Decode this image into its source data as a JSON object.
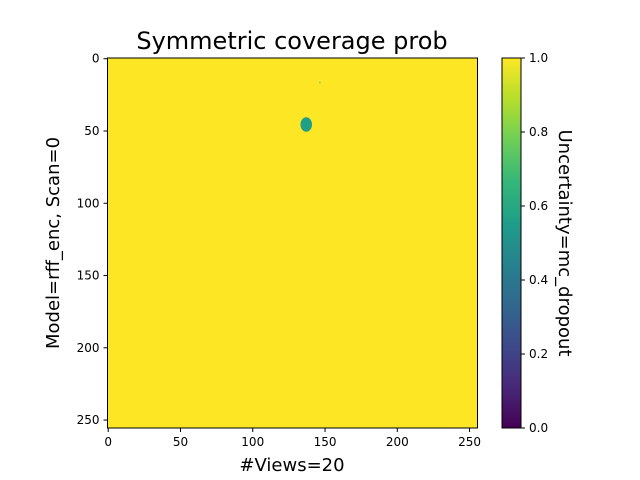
{
  "chart_data": {
    "type": "heatmap",
    "title": "Symmetric coverage prob",
    "xlabel": "#Views=20",
    "ylabel": "Model=rff_enc, Scan=0",
    "colorbar_label": "Uncertainty=mc_dropout",
    "xlim": [
      -0.5,
      255.5
    ],
    "ylim": [
      255.5,
      -0.5
    ],
    "x_ticks": [
      0,
      50,
      100,
      150,
      200,
      250
    ],
    "y_ticks": [
      0,
      50,
      100,
      150,
      200,
      250
    ],
    "colorbar_ticks": [
      0.0,
      0.2,
      0.4,
      0.6,
      0.8,
      1.0
    ],
    "colorbar_tick_labels": [
      "0.0",
      "0.2",
      "0.4",
      "0.6",
      "0.8",
      "1.0"
    ],
    "colorbar_range": [
      0.0,
      1.0
    ],
    "colormap": "viridis",
    "grid": false,
    "background_value": 1.0,
    "regions": [
      {
        "shape": "ellipse",
        "center_x": 137,
        "center_y": 45.5,
        "radius_x": 4,
        "radius_y": 5,
        "value": 0.56
      },
      {
        "shape": "point",
        "center_x": 146.5,
        "center_y": 16.5,
        "value": 0.8
      }
    ]
  },
  "colors": {
    "viridis": [
      "#440154",
      "#482878",
      "#3e4989",
      "#31688e",
      "#26828e",
      "#1f9e89",
      "#35b779",
      "#6ece58",
      "#b5de2b",
      "#fde725"
    ]
  }
}
